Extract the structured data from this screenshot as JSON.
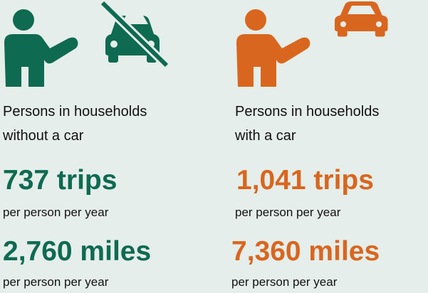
{
  "columns": [
    {
      "label_line1": "Persons in households",
      "label_line2": "without a car",
      "trips": "737 trips",
      "trips_unit": "per person per year",
      "miles": "2,760 miles",
      "miles_unit": "per person per year"
    },
    {
      "label_line1": "Persons in households",
      "label_line2": "with a car",
      "trips": "1,041 trips",
      "trips_unit": "per person per year",
      "miles": "7,360 miles",
      "miles_unit": "per person per year"
    }
  ]
}
